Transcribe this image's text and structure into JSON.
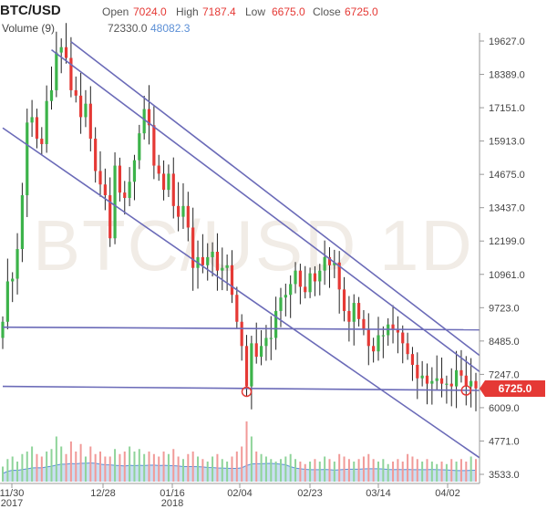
{
  "header": {
    "symbol": "BTC/USD",
    "open_label": "Open",
    "open_value": "7024.0",
    "high_label": "High",
    "high_value": "7187.4",
    "low_label": "Low",
    "low_value": "6675.0",
    "close_label": "Close",
    "close_value": "6725.0",
    "volume_label": "Volume (9)",
    "volume_value": "72330.0",
    "volume_ma_value": "48082.3"
  },
  "watermark": "BTC/USD 1D",
  "last_price_label": "6725.0",
  "colors": {
    "up": "#3cb34a",
    "down": "#e53935",
    "trendline": "#6b6bb8",
    "volume": "#9ec3ea",
    "volume_ma": "#5b8fd6",
    "marker": "#e53935"
  },
  "chart_data": {
    "type": "candlestick",
    "y_ticks": [
      "19627.0",
      "18389.0",
      "17151.0",
      "15913.0",
      "14675.0",
      "13437.0",
      "12199.0",
      "10961.0",
      "9723.0",
      "8485.0",
      "7247.0",
      "6009.0",
      "4771.0",
      "3533.0"
    ],
    "x_ticks": [
      {
        "label": "11/30",
        "sub": "2017"
      },
      {
        "label": "12/28",
        "sub": ""
      },
      {
        "label": "01/16",
        "sub": "2018"
      },
      {
        "label": "02/04",
        "sub": ""
      },
      {
        "label": "02/23",
        "sub": ""
      },
      {
        "label": "03/14",
        "sub": ""
      },
      {
        "label": "04/02",
        "sub": ""
      }
    ],
    "ylim": [
      3533,
      19627
    ],
    "grid": false,
    "closes": [
      9200,
      10700,
      10800,
      11900,
      13900,
      16600,
      16800,
      16000,
      15800,
      17400,
      17800,
      19200,
      19400,
      19000,
      17800,
      17600,
      16800,
      17300,
      16000,
      14800,
      14300,
      13900,
      12300,
      15000,
      14000,
      13800,
      14400,
      15200,
      16200,
      17100,
      16500,
      15000,
      14700,
      14100,
      14700,
      13500,
      13100,
      13500,
      12700,
      11200,
      11600,
      11300,
      11600,
      11800,
      11100,
      11200,
      11300,
      10200,
      9200,
      8300,
      6800,
      8400,
      7900,
      8300,
      8600,
      8600,
      9600,
      10100,
      10200,
      10600,
      11100,
      10500,
      10300,
      11000,
      10700,
      11100,
      11600,
      11300,
      11400,
      10400,
      9600,
      9200,
      9900,
      9300,
      8900,
      8300,
      8100,
      8700,
      8700,
      9100,
      8900,
      8800,
      8400,
      8000,
      7600,
      7100,
      7200,
      6900,
      7000,
      7100,
      6900,
      6900,
      6800,
      7400,
      7200,
      6800,
      7000,
      6725
    ],
    "volumes": [
      30,
      45,
      50,
      40,
      55,
      60,
      70,
      55,
      50,
      60,
      65,
      90,
      70,
      55,
      80,
      60,
      75,
      50,
      70,
      55,
      60,
      50,
      50,
      65,
      55,
      60,
      70,
      60,
      65,
      55,
      60,
      55,
      50,
      60,
      55,
      65,
      50,
      45,
      55,
      60,
      50,
      45,
      40,
      50,
      55,
      45,
      40,
      50,
      60,
      70,
      120,
      90,
      60,
      55,
      50,
      45,
      40,
      45,
      50,
      55,
      45,
      40,
      35,
      40,
      45,
      40,
      50,
      45,
      40,
      55,
      50,
      45,
      40,
      45,
      50,
      55,
      45,
      40,
      45,
      35,
      40,
      45,
      40,
      55,
      50,
      45,
      40,
      45,
      40,
      35,
      40,
      35,
      45,
      40,
      45,
      40,
      50,
      45
    ],
    "trendlines": [
      {
        "from": {
          "i": 0,
          "p": 16400
        },
        "to": {
          "i": 97,
          "p": 4150
        }
      },
      {
        "from": {
          "i": 10,
          "p": 19300
        },
        "to": {
          "i": 97,
          "p": 7350
        }
      },
      {
        "from": {
          "i": 14,
          "p": 19600
        },
        "to": {
          "i": 97,
          "p": 7950
        }
      },
      {
        "from": {
          "i": 0,
          "p": 9000
        },
        "to": {
          "i": 97,
          "p": 8900
        }
      },
      {
        "from": {
          "i": 0,
          "p": 6800
        },
        "to": {
          "i": 97,
          "p": 6650
        }
      }
    ],
    "markers": [
      {
        "i": 50,
        "p": 6600
      },
      {
        "i": 95,
        "p": 6650
      }
    ],
    "last_price": 6725
  }
}
